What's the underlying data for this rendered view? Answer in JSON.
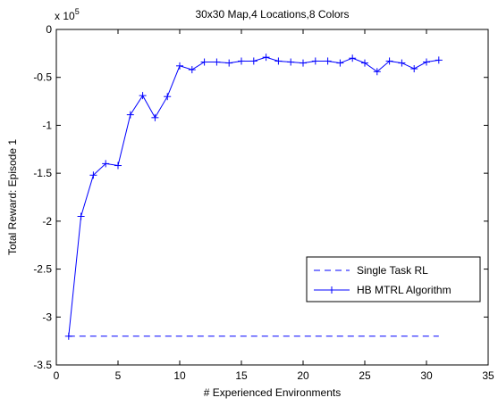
{
  "chart_data": {
    "type": "line",
    "title": "30x30 Map,4 Locations,8 Colors",
    "xlabel": "# Experienced Environments",
    "ylabel": "Total Reward: Episode 1",
    "y_multiplier": "x 10",
    "y_exponent": "5",
    "xlim": [
      0,
      35
    ],
    "ylim": [
      -3.5,
      0
    ],
    "xticks": [
      0,
      5,
      10,
      15,
      20,
      25,
      30,
      35
    ],
    "xtick_labels": [
      "0",
      "5",
      "10",
      "15",
      "20",
      "25",
      "30",
      "35"
    ],
    "yticks": [
      0,
      -0.5,
      -1,
      -1.5,
      -2,
      -2.5,
      -3,
      -3.5
    ],
    "ytick_labels": [
      "0",
      "-0.5",
      "-1",
      "-1.5",
      "-2",
      "-2.5",
      "-3",
      "-3.5"
    ],
    "grid": false,
    "legend_position": "lower-right",
    "series": [
      {
        "name": "Single Task RL",
        "style": "dashed",
        "color": "#0000ff",
        "x": [
          1,
          31
        ],
        "y": [
          -3.2,
          -3.2
        ]
      },
      {
        "name": "HB MTRL Algorithm",
        "style": "solid-plus",
        "color": "#0000ff",
        "x": [
          1,
          2,
          3,
          4,
          5,
          6,
          7,
          8,
          9,
          10,
          11,
          12,
          13,
          14,
          15,
          16,
          17,
          18,
          19,
          20,
          21,
          22,
          23,
          24,
          25,
          26,
          27,
          28,
          29,
          30,
          31
        ],
        "y": [
          -3.2,
          -1.95,
          -1.52,
          -1.4,
          -1.42,
          -0.89,
          -0.69,
          -0.92,
          -0.7,
          -0.38,
          -0.42,
          -0.34,
          -0.34,
          -0.35,
          -0.33,
          -0.33,
          -0.29,
          -0.33,
          -0.34,
          -0.35,
          -0.33,
          -0.33,
          -0.35,
          -0.3,
          -0.35,
          -0.44,
          -0.33,
          -0.35,
          -0.41,
          -0.34,
          -0.32
        ]
      }
    ]
  }
}
